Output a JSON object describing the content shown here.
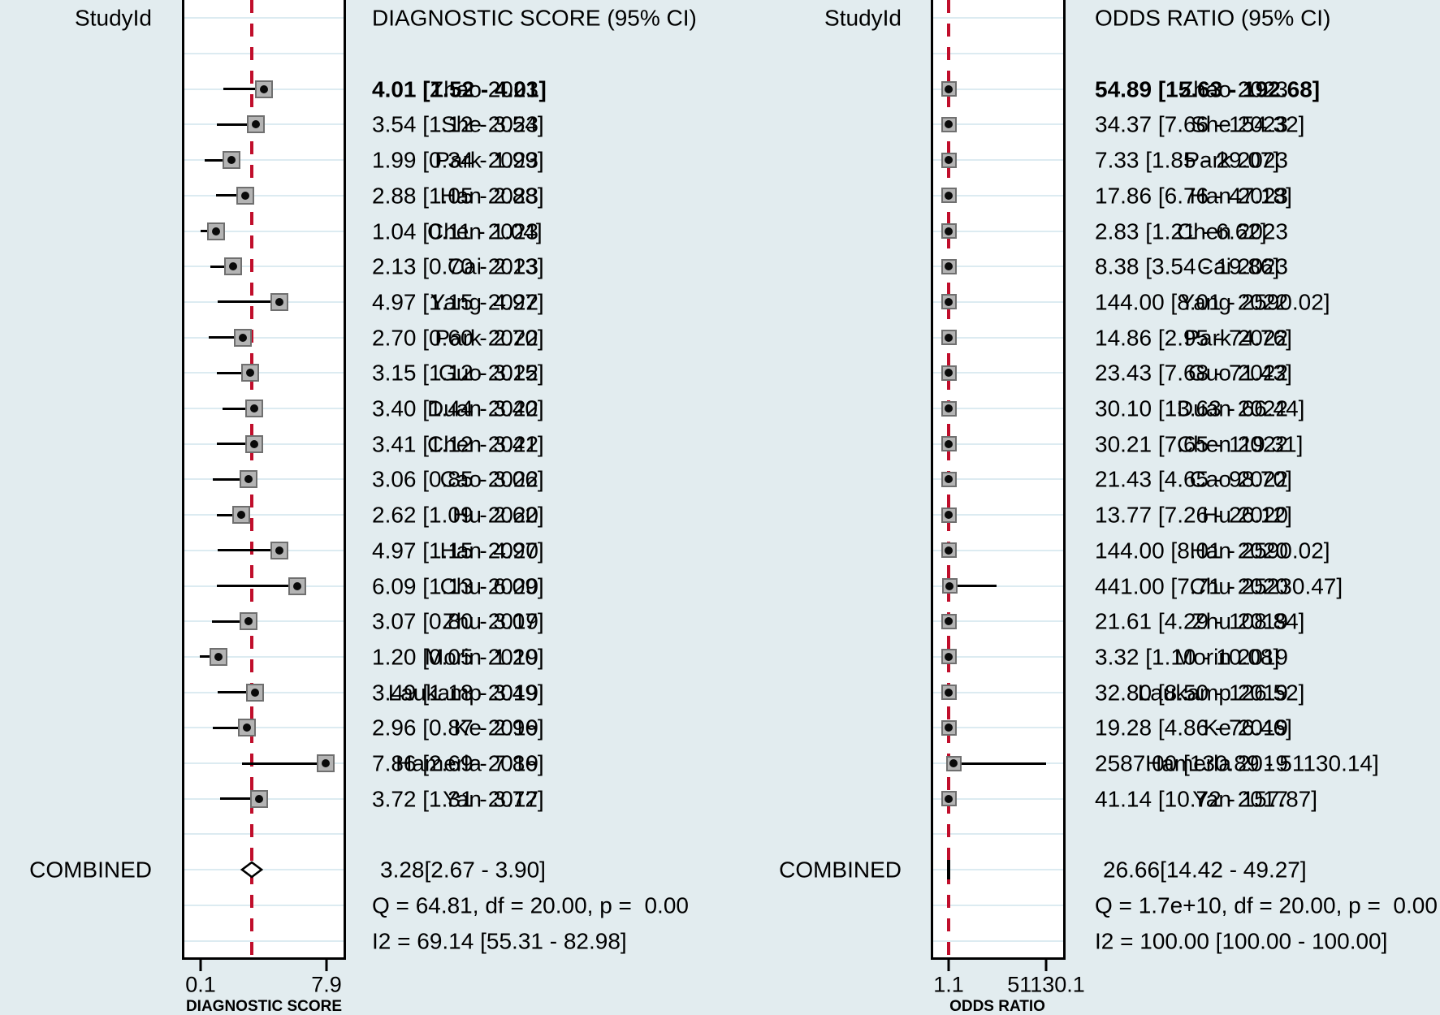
{
  "colors": {
    "background": "#e2ecef",
    "plot_background": "#ffffff",
    "frame": "#000000",
    "gridline": "#dcebf1",
    "reference_line": "#c00e2b",
    "marker_fill": "#b4b4b4",
    "marker_border": "#6f6f6f",
    "marker_dot": "#0a0a0a",
    "text": "#000000"
  },
  "chart_data": {
    "type": "forest",
    "panels": [
      {
        "id": "diagnostic-score",
        "study_header": "StudyId",
        "value_header": "DIAGNOSTIC SCORE (95% CI)",
        "axis": {
          "title": "DIAGNOSTIC SCORE",
          "tick_labels": [
            "0.1",
            "7.9"
          ],
          "tick_values": [
            0.1,
            7.9
          ],
          "scale": "linear"
        },
        "studies": [
          {
            "label": "Zhao 2023",
            "estimate": 4.01,
            "lower": 1.52,
            "upper": 4.01,
            "value_text": "4.01 [1.52 - 4.01]",
            "bold": true
          },
          {
            "label": "She 2023",
            "estimate": 3.54,
            "lower": 1.12,
            "upper": 3.54,
            "value_text": "3.54 [1.12 - 3.54]"
          },
          {
            "label": "Park 2023",
            "estimate": 1.99,
            "lower": 0.34,
            "upper": 1.99,
            "value_text": "1.99 [0.34 - 1.99]"
          },
          {
            "label": "Han 2023",
            "estimate": 2.88,
            "lower": 1.05,
            "upper": 2.88,
            "value_text": "2.88 [1.05 - 2.88]"
          },
          {
            "label": "Chen 2023",
            "estimate": 1.04,
            "lower": 0.11,
            "upper": 1.04,
            "value_text": "1.04 [0.11 - 1.04]"
          },
          {
            "label": "Cai 2023",
            "estimate": 2.13,
            "lower": 0.7,
            "upper": 2.13,
            "value_text": "2.13 [0.70 - 2.13]"
          },
          {
            "label": "Yang 2022",
            "estimate": 4.97,
            "lower": 1.15,
            "upper": 4.97,
            "value_text": "4.97 [1.15 - 4.97]"
          },
          {
            "label": "Park 2022",
            "estimate": 2.7,
            "lower": 0.6,
            "upper": 2.7,
            "value_text": "2.70 [0.60 - 2.70]"
          },
          {
            "label": "Guo 2022",
            "estimate": 3.15,
            "lower": 1.12,
            "upper": 3.15,
            "value_text": "3.15 [1.12 - 3.15]"
          },
          {
            "label": "Duan 2022",
            "estimate": 3.4,
            "lower": 1.44,
            "upper": 3.4,
            "value_text": "3.40 [1.44 - 3.40]"
          },
          {
            "label": "Chen 2022",
            "estimate": 3.41,
            "lower": 1.12,
            "upper": 3.41,
            "value_text": "3.41 [1.12 - 3.41]"
          },
          {
            "label": "Cao 2022",
            "estimate": 3.06,
            "lower": 0.85,
            "upper": 3.06,
            "value_text": "3.06 [0.85 - 3.06]"
          },
          {
            "label": "Hu 2020",
            "estimate": 2.62,
            "lower": 1.09,
            "upper": 2.62,
            "value_text": "2.62 [1.09 - 2.62]"
          },
          {
            "label": "Han 2020",
            "estimate": 4.97,
            "lower": 1.15,
            "upper": 4.97,
            "value_text": "4.97 [1.15 - 4.97]"
          },
          {
            "label": "Chu 2020",
            "estimate": 6.09,
            "lower": 1.13,
            "upper": 6.09,
            "value_text": "6.09 [1.13 - 6.09]"
          },
          {
            "label": "Zhu 2019",
            "estimate": 3.07,
            "lower": 0.8,
            "upper": 3.07,
            "value_text": "3.07 [0.80 - 3.07]"
          },
          {
            "label": "Morin 2019",
            "estimate": 1.2,
            "lower": 0.05,
            "upper": 1.2,
            "value_text": "1.20 [0.05 - 1.20]"
          },
          {
            "label": "Laukamp 2019",
            "estimate": 3.49,
            "lower": 1.18,
            "upper": 3.49,
            "value_text": "3.49 [1.18 - 3.49]"
          },
          {
            "label": "Ke 2019",
            "estimate": 2.96,
            "lower": 0.87,
            "upper": 2.96,
            "value_text": "2.96 [0.87 - 2.96]"
          },
          {
            "label": "Hamerla 2019",
            "estimate": 7.86,
            "lower": 2.69,
            "upper": 7.86,
            "value_text": "7.86 [2.69 - 7.86]"
          },
          {
            "label": "Yan 2017",
            "estimate": 3.72,
            "lower": 1.31,
            "upper": 3.72,
            "value_text": "3.72 [1.31 - 3.72]"
          }
        ],
        "combined": {
          "label": "COMBINED",
          "estimate": 3.28,
          "lower": 2.67,
          "upper": 3.9,
          "value_text": "3.28[2.67 - 3.90]"
        },
        "heterogeneity": {
          "q_text": "Q = 64.81, df = 20.00, p =  0.00",
          "i2_text": "I2 = 69.14 [55.31 - 82.98]"
        }
      },
      {
        "id": "odds-ratio",
        "study_header": "StudyId",
        "value_header": "ODDS RATIO (95% CI)",
        "axis": {
          "title": "ODDS RATIO",
          "tick_labels": [
            "1.1",
            "51130.1"
          ],
          "tick_values": [
            1.1,
            51130.1
          ],
          "scale": "linear"
        },
        "studies": [
          {
            "label": "Zhao 2023",
            "estimate": 54.89,
            "lower": 15.63,
            "upper": 192.68,
            "value_text": "54.89 [15.63 - 192.68]",
            "bold": true
          },
          {
            "label": "She 2023",
            "estimate": 34.37,
            "lower": 7.66,
            "upper": 154.32,
            "value_text": "34.37 [7.66 - 154.32]"
          },
          {
            "label": "Park 2023",
            "estimate": 7.33,
            "lower": 1.85,
            "upper": 29.07,
            "value_text": "7.33 [1.85 - 29.07]"
          },
          {
            "label": "Han 2023",
            "estimate": 17.86,
            "lower": 6.76,
            "upper": 47.18,
            "value_text": "17.86 [6.76 - 47.18]"
          },
          {
            "label": "Chen 2023",
            "estimate": 2.83,
            "lower": 1.21,
            "upper": 6.62,
            "value_text": "2.83 [1.21 - 6.62]"
          },
          {
            "label": "Cai 2023",
            "estimate": 8.38,
            "lower": 3.54,
            "upper": 19.86,
            "value_text": "8.38 [3.54 - 19.86]"
          },
          {
            "label": "Yang 2022",
            "estimate": 144.0,
            "lower": 8.01,
            "upper": 2590.02,
            "value_text": "144.00 [8.01 - 2590.02]"
          },
          {
            "label": "Park 2022",
            "estimate": 14.86,
            "lower": 2.95,
            "upper": 74.76,
            "value_text": "14.86 [2.95 - 74.76]"
          },
          {
            "label": "Guo 2022",
            "estimate": 23.43,
            "lower": 7.68,
            "upper": 71.43,
            "value_text": "23.43 [7.68 - 71.43]"
          },
          {
            "label": "Duan 2022",
            "estimate": 30.1,
            "lower": 13.63,
            "upper": 66.44,
            "value_text": "30.10 [13.63 - 66.44]"
          },
          {
            "label": "Chen 2022",
            "estimate": 30.21,
            "lower": 7.65,
            "upper": 119.31,
            "value_text": "30.21 [7.65 - 119.31]"
          },
          {
            "label": "Cao 2022",
            "estimate": 21.43,
            "lower": 4.65,
            "upper": 98.7,
            "value_text": "21.43 [4.65 - 98.70]"
          },
          {
            "label": "Hu 2020",
            "estimate": 13.77,
            "lower": 7.26,
            "upper": 26.12,
            "value_text": "13.77 [7.26 - 26.12]"
          },
          {
            "label": "Han 2020",
            "estimate": 144.0,
            "lower": 8.01,
            "upper": 2590.02,
            "value_text": "144.00 [8.01 - 2590.02]"
          },
          {
            "label": "Chu 2020",
            "estimate": 441.0,
            "lower": 7.71,
            "upper": 25230.47,
            "value_text": "441.00 [7.71 - 25230.47]"
          },
          {
            "label": "Zhu 2019",
            "estimate": 21.61,
            "lower": 4.29,
            "upper": 108.84,
            "value_text": "21.61 [4.29 - 108.84]"
          },
          {
            "label": "Morin 2019",
            "estimate": 3.32,
            "lower": 1.1,
            "upper": 10.08,
            "value_text": "3.32 [1.10 - 10.08]"
          },
          {
            "label": "Laukamp 2019",
            "estimate": 32.8,
            "lower": 8.5,
            "upper": 126.52,
            "value_text": "32.80 [8.50 - 126.52]"
          },
          {
            "label": "Ke 2019",
            "estimate": 19.28,
            "lower": 4.86,
            "upper": 76.46,
            "value_text": "19.28 [4.86 - 76.46]"
          },
          {
            "label": "Hamerla 2019",
            "estimate": 2587.0,
            "lower": 130.89,
            "upper": 51130.14,
            "value_text": "2587.00 [130.89 - 51130.14]"
          },
          {
            "label": "Yan 2017",
            "estimate": 41.14,
            "lower": 10.72,
            "upper": 157.87,
            "value_text": "41.14 [10.72 - 157.87]"
          }
        ],
        "combined": {
          "label": "COMBINED",
          "estimate": 26.66,
          "lower": 14.42,
          "upper": 49.27,
          "value_text": "26.66[14.42 - 49.27]"
        },
        "heterogeneity": {
          "q_text": "Q = 1.7e+10, df = 20.00, p =  0.00",
          "i2_text": "I2 = 100.00 [100.00 - 100.00]"
        }
      }
    ]
  }
}
